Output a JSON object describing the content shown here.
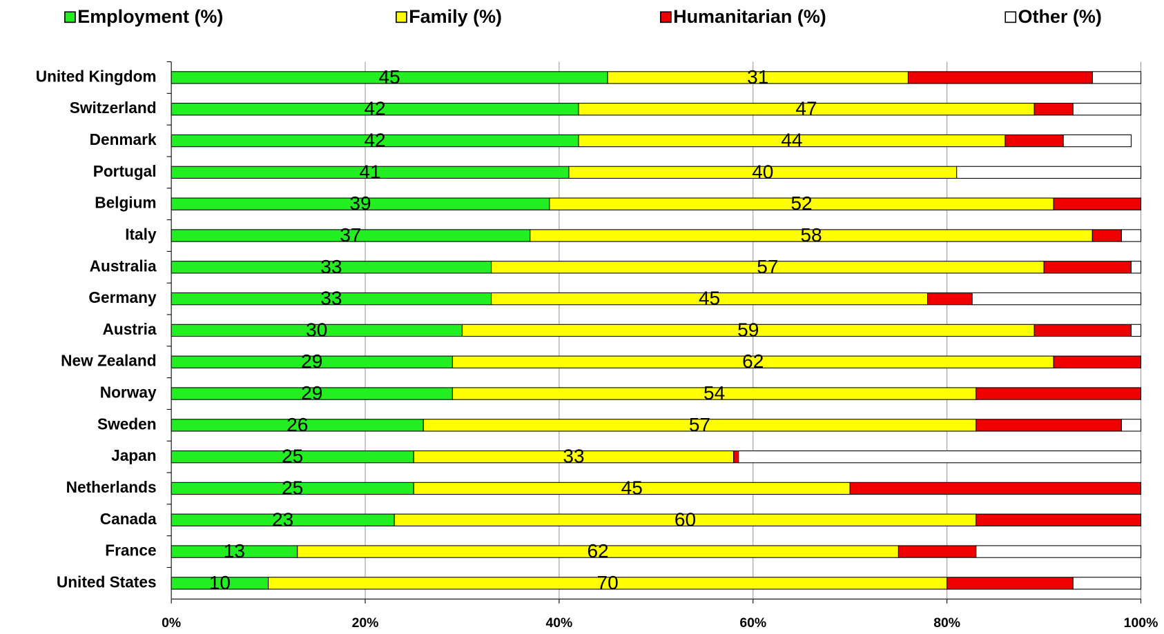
{
  "chart_data": {
    "type": "stacked-barh",
    "categories": [
      "United Kingdom",
      "Switzerland",
      "Denmark",
      "Portugal",
      "Belgium",
      "Italy",
      "Australia",
      "Germany",
      "Austria",
      "New Zealand",
      "Norway",
      "Sweden",
      "Japan",
      "Netherlands",
      "Canada",
      "France",
      "United States"
    ],
    "series": [
      {
        "name": "Employment (%)",
        "color": "#22ee22",
        "labels": true,
        "values": [
          45,
          42,
          42,
          41,
          39,
          37,
          33,
          33,
          30,
          29,
          29,
          26,
          25,
          25,
          23,
          13,
          10
        ]
      },
      {
        "name": "Family (%)",
        "color": "#ffff00",
        "labels": true,
        "values": [
          31,
          47,
          44,
          40,
          52,
          58,
          57,
          45,
          59,
          62,
          54,
          57,
          33,
          45,
          60,
          62,
          70
        ]
      },
      {
        "name": "Humanitarian (%)",
        "color": "#ee0000",
        "labels": false,
        "values": [
          19,
          4,
          6,
          0,
          9,
          3,
          9,
          4.6,
          10,
          9,
          17,
          15,
          0.5,
          30,
          17,
          8,
          13
        ]
      },
      {
        "name": "Other (%)",
        "color": "#ffffff",
        "labels": false,
        "values": [
          5,
          7,
          7,
          19,
          0,
          2,
          1,
          17.4,
          1,
          0,
          0,
          2,
          41.5,
          0,
          0,
          17,
          7
        ]
      }
    ],
    "xlim": [
      0,
      100
    ],
    "xticks": [
      {
        "value": 0,
        "label": "0%"
      },
      {
        "value": 20,
        "label": "20%"
      },
      {
        "value": 40,
        "label": "40%"
      },
      {
        "value": 60,
        "label": "60%"
      },
      {
        "value": 80,
        "label": "80%"
      },
      {
        "value": 100,
        "label": "100%"
      }
    ],
    "grid": true,
    "legend": "top"
  }
}
